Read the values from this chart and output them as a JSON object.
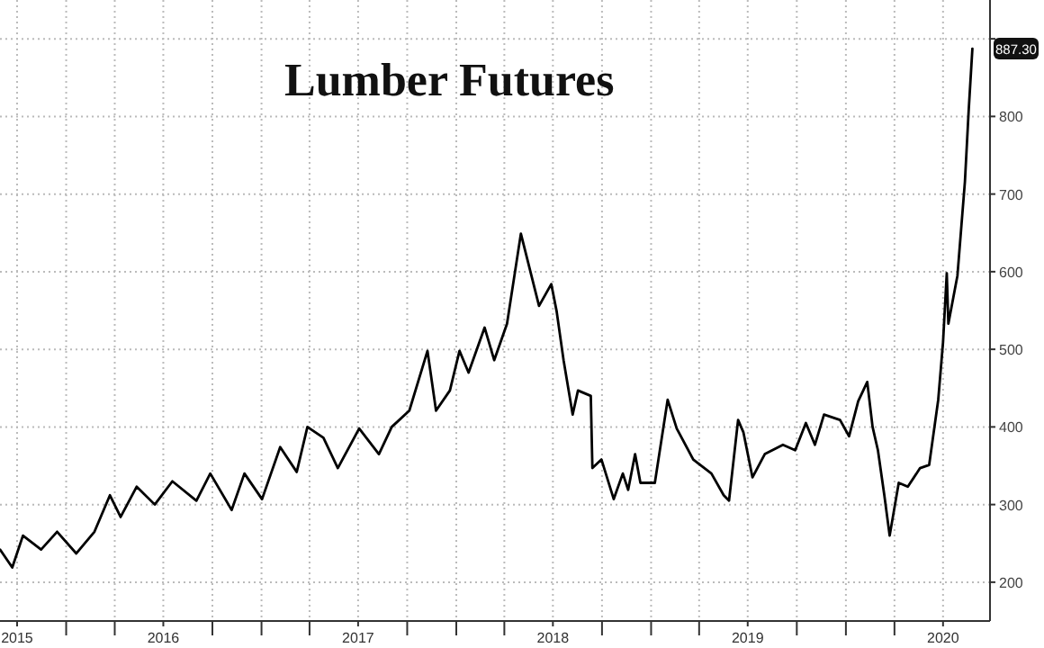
{
  "chart_data": {
    "type": "line",
    "title": "Lumber Futures",
    "x": [
      "2015-08-30",
      "2015-09-22",
      "2015-10-12",
      "2015-11-15",
      "2015-12-15",
      "2016-01-20",
      "2016-02-23",
      "2016-03-23",
      "2016-04-12",
      "2016-05-12",
      "2016-06-15",
      "2016-07-18",
      "2016-09-01",
      "2016-09-27",
      "2016-11-06",
      "2016-11-30",
      "2017-01-02",
      "2017-02-05",
      "2017-03-08",
      "2017-03-28",
      "2017-04-27",
      "2017-05-24",
      "2017-07-03",
      "2017-08-09",
      "2017-09-02",
      "2017-10-05",
      "2017-11-08",
      "2017-11-24",
      "2017-12-20",
      "2018-01-07",
      "2018-01-24",
      "2018-02-23",
      "2018-03-13",
      "2018-04-06",
      "2018-05-02",
      "2018-06-05",
      "2018-06-28",
      "2018-07-08",
      "2018-07-21",
      "2018-08-07",
      "2018-08-17",
      "2018-09-10",
      "2018-09-13",
      "2018-09-30",
      "2018-10-23",
      "2018-11-09",
      "2018-11-19",
      "2018-12-02",
      "2018-12-12",
      "2019-01-08",
      "2019-02-01",
      "2019-02-18",
      "2019-03-21",
      "2019-04-24",
      "2019-05-17",
      "2019-05-27",
      "2019-06-13",
      "2019-06-23",
      "2019-07-10",
      "2019-08-02",
      "2019-09-05",
      "2019-09-28",
      "2019-10-18",
      "2019-11-04",
      "2019-11-21",
      "2019-12-21",
      "2020-01-07",
      "2020-01-24",
      "2020-02-10",
      "2020-02-20",
      "2020-03-01",
      "2020-03-13",
      "2020-03-23",
      "2020-04-09",
      "2020-04-26",
      "2020-05-19",
      "2020-06-05",
      "2020-06-22",
      "2020-07-01",
      "2020-07-08",
      "2020-07-11",
      "2020-07-28",
      "2020-08-11",
      "2020-08-18",
      "2020-08-25"
    ],
    "series": [
      {
        "color": "#000000",
        "values": [
          242,
          219,
          260,
          242,
          265,
          237,
          265,
          312,
          284,
          323,
          300,
          330,
          305,
          340,
          293,
          340,
          307,
          374,
          342,
          400,
          386,
          347,
          398,
          365,
          400,
          421,
          498,
          421,
          447,
          498,
          470,
          528,
          486,
          533,
          649,
          556,
          584,
          549,
          486,
          416,
          447,
          440,
          347,
          358,
          307,
          340,
          319,
          365,
          328,
          328,
          435,
          398,
          358,
          340,
          312,
          305,
          409,
          393,
          335,
          365,
          377,
          370,
          405,
          377,
          416,
          409,
          388,
          433,
          458,
          400,
          370,
          312,
          260,
          328,
          323,
          347,
          351,
          435,
          509,
          598,
          533,
          595,
          716,
          807,
          887.3
        ]
      }
    ],
    "xlim": [
      "2015-08-30",
      "2020-09-27"
    ],
    "ylim": [
      150,
      950
    ],
    "xticks": [
      {
        "value": "2015-10-01",
        "label": "2015"
      },
      {
        "value": "2016-01-01",
        "label": null
      },
      {
        "value": "2016-04-01",
        "label": null
      },
      {
        "value": "2016-07-01",
        "label": "2016"
      },
      {
        "value": "2016-10-01",
        "label": null
      },
      {
        "value": "2017-01-01",
        "label": null
      },
      {
        "value": "2017-04-01",
        "label": null
      },
      {
        "value": "2017-07-01",
        "label": "2017"
      },
      {
        "value": "2017-10-01",
        "label": null
      },
      {
        "value": "2018-01-01",
        "label": null
      },
      {
        "value": "2018-04-01",
        "label": null
      },
      {
        "value": "2018-07-01",
        "label": "2018"
      },
      {
        "value": "2018-10-01",
        "label": null
      },
      {
        "value": "2019-01-01",
        "label": null
      },
      {
        "value": "2019-04-01",
        "label": null
      },
      {
        "value": "2019-07-01",
        "label": "2019"
      },
      {
        "value": "2019-10-01",
        "label": null
      },
      {
        "value": "2020-01-01",
        "label": null
      },
      {
        "value": "2020-04-01",
        "label": null
      },
      {
        "value": "2020-07-01",
        "label": "2020"
      }
    ],
    "yticks": [
      200,
      300,
      400,
      500,
      600,
      700,
      800,
      {
        "value": 900,
        "label": null
      }
    ],
    "annotations": [
      {
        "text": "887.30",
        "x": "2020-08-25",
        "y": 887.3
      }
    ],
    "grid": true,
    "line_style": "solid",
    "marker": "none"
  }
}
